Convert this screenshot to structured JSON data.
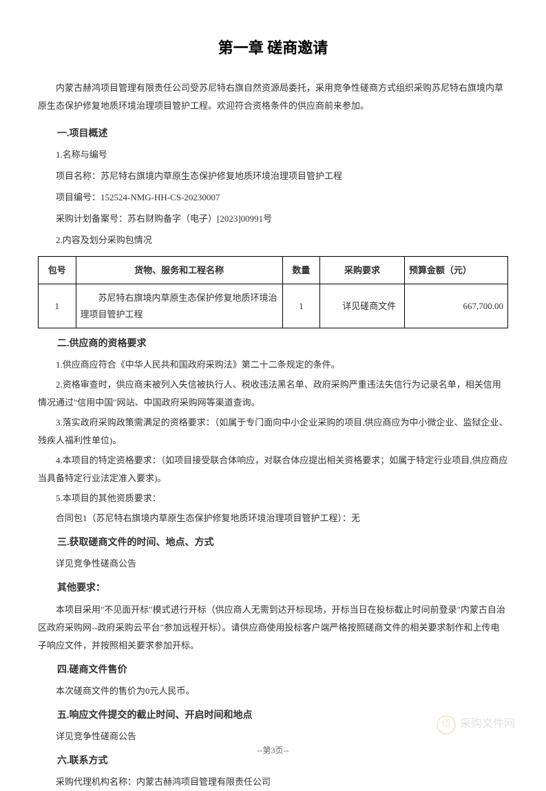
{
  "title": "第一章 磋商邀请",
  "intro": "内蒙古赫鸿项目管理有限责任公司受苏尼特右旗自然资源局委托，采用竞争性磋商方式组织采购苏尼特右旗境内草原生态保护修复地质环境治理项目管护工程。欢迎符合资格条件的供应商前来参加。",
  "section1": {
    "heading": "一.项目概述",
    "item1": "1.名称与编号",
    "projectNameLabel": "项目名称：苏尼特右旗境内草原生态保护修复地质环境治理项目管护工程",
    "projectNumberLabel": "项目编号：152524-NMG-HH-CS-20230007",
    "planNumberLabel": "采购计划备案号：苏右财购备字（电子）[2023]00991号",
    "item2": "2.内容及划分采购包情况"
  },
  "table": {
    "headers": {
      "pkg": "包号",
      "name": "货物、服务和工程名称",
      "qty": "数量",
      "req": "采购要求",
      "budget": "预算金额（元）"
    },
    "row": {
      "pkg": "1",
      "name": "苏尼特右旗境内草原生态保护修复地质环境治理项目管护工程",
      "qty": "1",
      "req": "详见磋商文件",
      "budget": "667,700.00"
    }
  },
  "section2": {
    "heading": "二.供应商的资格要求",
    "p1": "1.供应商应符合《中华人民共和国政府采购法》第二十二条规定的条件。",
    "p2": "2.资格审查时，供应商未被列入失信被执行人、税收违法黑名单、政府采购严重违法失信行为记录名单，相关信用情况通过\"信用中国\"网站、中国政府采购网等渠道查询。",
    "p3": "3.落实政府采购政策需满足的资格要求：（如属于专门面向中小企业采购的项目,供应商应为中小微企业、监狱企业、残疾人福利性单位)。",
    "p4": "4.本项目的特定资格要求：（如项目接受联合体响应，对联合体应提出相关资格要求；如属于特定行业项目,供应商应当具备特定行业法定准入要求)。",
    "p5": "5.本项目的其他资质要求：",
    "p6": "合同包1（苏尼特右旗境内草原生态保护修复地质环境治理项目管护工程）：无"
  },
  "section3": {
    "heading": "三.获取磋商文件的时间、地点、方式",
    "p1": "详见竞争性磋商公告"
  },
  "sectionOther": {
    "heading": "其他要求：",
    "p1": "本项目采用\"不见面开标\"模式进行开标（供应商人无需到达开标现场，开标当日在投标截止时间前登录\"内蒙古自治区政府采购网--政府采购云平台\"参加远程开标）。请供应商使用投标客户端严格按照磋商文件的相关要求制作和上传电子响应文件，并按照相关要求参加开标。"
  },
  "section4": {
    "heading": "四.磋商文件售价",
    "p1": "本次磋商文件的售价为0元人民币。"
  },
  "section5": {
    "heading": "五.响应文件提交的截止时间、开启时间和地点",
    "p1": "详见竞争性磋商公告"
  },
  "section6": {
    "heading": "六.联系方式",
    "p1": "采购代理机构名称：内蒙古赫鸿项目管理有限责任公司"
  },
  "watermark": {
    "icon": "佰",
    "text": "采购文件网"
  },
  "pageNumber": "--第3页--"
}
